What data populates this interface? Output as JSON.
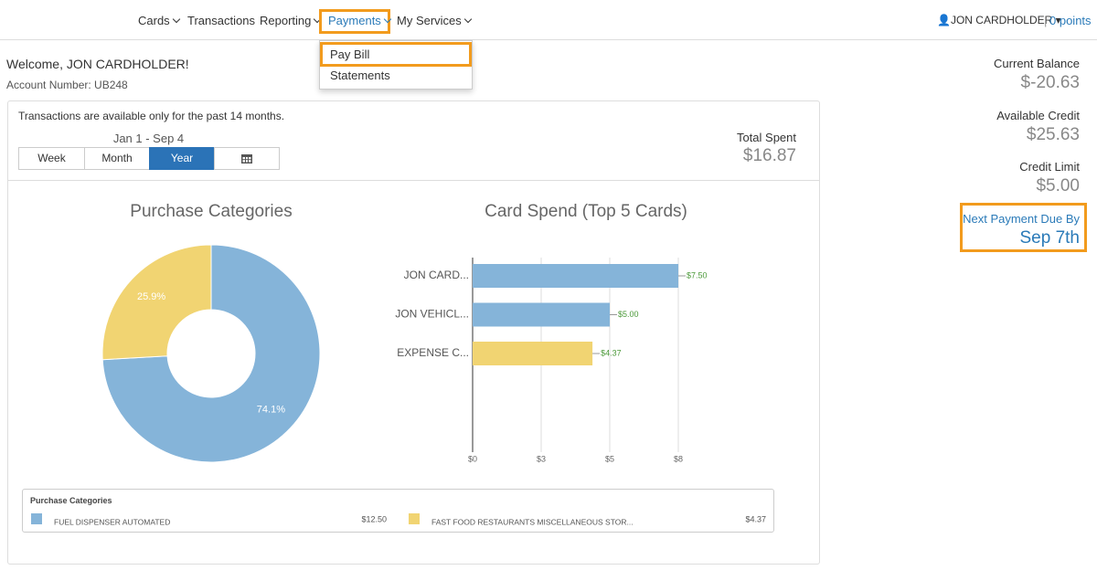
{
  "nav": {
    "items": [
      "Cards",
      "Transactions",
      "Reporting",
      "Payments",
      "My Services"
    ],
    "user": "JON CARDHOLDER",
    "points": "0 points"
  },
  "dropdown": [
    "Pay Bill",
    "Statements"
  ],
  "welcome": "Welcome, JON CARDHOLDER!",
  "account": "Account Number: UB248",
  "notice": "Transactions are available only for the past 14 months.",
  "date_range": "Jan 1 - Sep 4",
  "periods": [
    "Week",
    "Month",
    "Year"
  ],
  "total": {
    "label": "Total Spent",
    "value": "$16.87"
  },
  "summary": [
    {
      "label": "Current Balance",
      "value": "$-20.63"
    },
    {
      "label": "Available Credit",
      "value": "$25.63"
    },
    {
      "label": "Credit Limit",
      "value": "$5.00"
    },
    {
      "label": "Next Payment Due By",
      "value": "Sep 7th"
    }
  ],
  "chart_data": [
    {
      "type": "pie",
      "title": "Purchase Categories",
      "categories": [
        "FUEL DISPENSER AUTOMATED",
        "FAST FOOD RESTAURANTS MISCELLANEOUS STOR..."
      ],
      "values": [
        74.1,
        25.9
      ],
      "value_labels": [
        "74.1%",
        "25.9%"
      ],
      "colors": [
        "#85b4d9",
        "#f1d472"
      ]
    },
    {
      "type": "hbar",
      "title": "Card Spend (Top 5 Cards)",
      "categories": [
        "JON CARD...",
        "JON VEHICL...",
        "EXPENSE C..."
      ],
      "values": [
        7.5,
        5,
        4.37
      ],
      "value_labels": [
        "$7.50",
        "$5.00",
        "$4.37"
      ],
      "colors": [
        "#85b4d9",
        "#85b4d9",
        "#f1d472"
      ],
      "xlim": [
        0,
        7.5
      ],
      "xticks": [
        {
          "value": 0,
          "label": "$0"
        },
        {
          "value": 2.5,
          "label": "$3"
        },
        {
          "value": 5,
          "label": "$5"
        },
        {
          "value": 7.5,
          "label": "$8"
        }
      ],
      "grid": true
    }
  ],
  "legend": {
    "title": "Purchase Categories",
    "amounts": [
      "$12.50",
      "$4.37"
    ]
  }
}
